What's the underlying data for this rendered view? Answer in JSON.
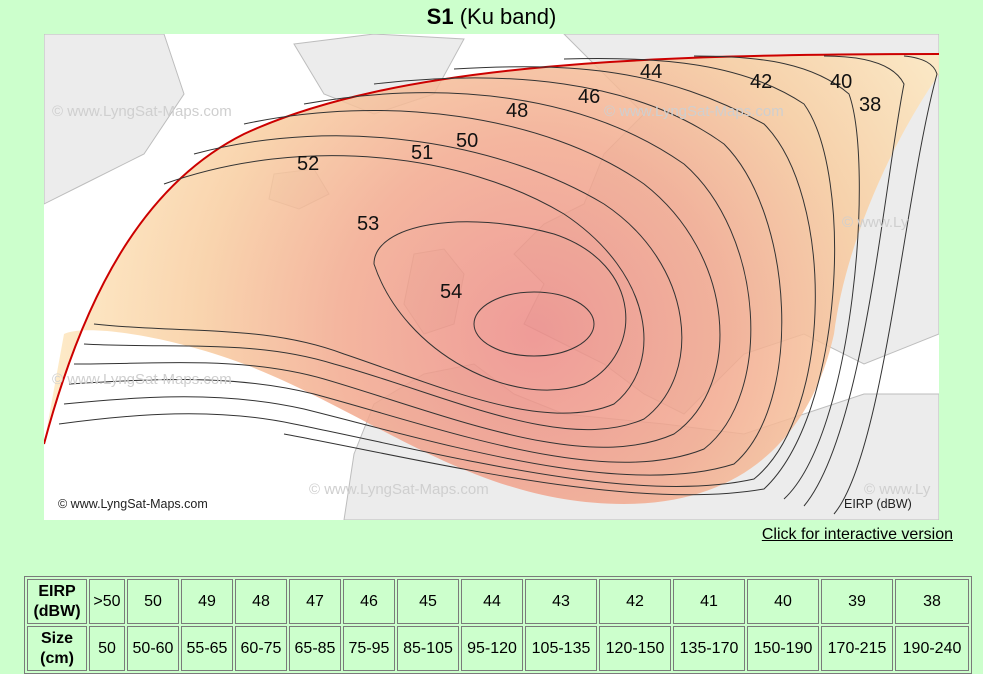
{
  "title": {
    "name": "S1",
    "band": "(Ku band)"
  },
  "map": {
    "watermark": "© www.LyngSat-Maps.com",
    "watermark_short": "© www.Ly",
    "credit": "© www.LyngSat-Maps.com",
    "unit_label": "EIRP (dBW)",
    "contour_labels": [
      "54",
      "53",
      "52",
      "51",
      "50",
      "48",
      "46",
      "44",
      "42",
      "40",
      "38"
    ]
  },
  "interactive_link": "Click for interactive version",
  "table": {
    "eirp_header": [
      "EIRP",
      "(dBW)"
    ],
    "size_header": [
      "Size",
      "(cm)"
    ],
    "eirp": [
      ">50",
      "50",
      "49",
      "48",
      "47",
      "46",
      "45",
      "44",
      "43",
      "42",
      "41",
      "40",
      "39",
      "38"
    ],
    "size": [
      "50",
      "50-60",
      "55-65",
      "60-75",
      "65-85",
      "75-95",
      "85-105",
      "95-120",
      "105-135",
      "120-150",
      "135-170",
      "150-190",
      "170-215",
      "190-240"
    ]
  },
  "colors": {
    "background": "#ccffcc",
    "footprint_edge": "#cc0000",
    "contour_line": "#333333"
  }
}
